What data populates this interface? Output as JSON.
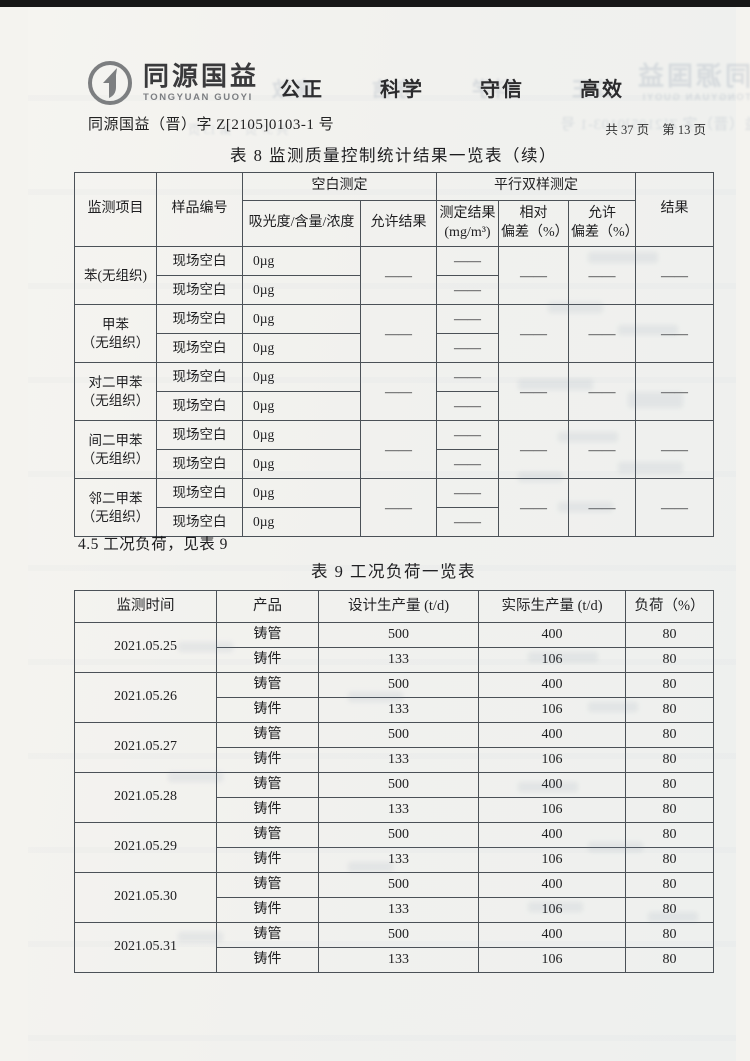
{
  "header": {
    "logo_cn": "同源国益",
    "logo_en": "TONGYUAN GUOYI",
    "slogans": [
      "公正",
      "科学",
      "守信",
      "高效"
    ],
    "doc_number": "同源国益（晋）字 Z[2105]0103-1 号",
    "page_count": "共 37 页",
    "page_current": "第 13 页"
  },
  "section_4_5": "4.5 工况负荷，见表 9",
  "table8": {
    "title": "表 8  监测质量控制统计结果一览表（续）",
    "headers": {
      "item": "监测项目",
      "sample_no": "样品编号",
      "blank_group": "空白测定",
      "parallel_group": "平行双样测定",
      "result": "结果",
      "absorbance": "吸光度/含量/浓度",
      "allowed_result": "允许结果",
      "measured": "测定结果\n(mg/m³)",
      "relative_dev": "相对\n偏差（%）",
      "allowed_dev": "允许\n偏差（%）"
    },
    "groups": [
      {
        "item": "苯(无组织)",
        "rows": [
          {
            "sample": "现场空白",
            "value": "0µg",
            "measured": "——"
          },
          {
            "sample": "现场空白",
            "value": "0µg",
            "measured": "——"
          }
        ],
        "allowed_result": "——",
        "relative_dev": "——",
        "allowed_dev": "——",
        "result": "——"
      },
      {
        "item": "甲苯\n（无组织）",
        "rows": [
          {
            "sample": "现场空白",
            "value": "0µg",
            "measured": "——"
          },
          {
            "sample": "现场空白",
            "value": "0µg",
            "measured": "——"
          }
        ],
        "allowed_result": "——",
        "relative_dev": "——",
        "allowed_dev": "——",
        "result": "——"
      },
      {
        "item": "对二甲苯\n（无组织）",
        "rows": [
          {
            "sample": "现场空白",
            "value": "0µg",
            "measured": "——"
          },
          {
            "sample": "现场空白",
            "value": "0µg",
            "measured": "——"
          }
        ],
        "allowed_result": "——",
        "relative_dev": "——",
        "allowed_dev": "——",
        "result": "——"
      },
      {
        "item": "间二甲苯\n（无组织）",
        "rows": [
          {
            "sample": "现场空白",
            "value": "0µg",
            "measured": "——"
          },
          {
            "sample": "现场空白",
            "value": "0µg",
            "measured": "——"
          }
        ],
        "allowed_result": "——",
        "relative_dev": "——",
        "allowed_dev": "——",
        "result": "——"
      },
      {
        "item": "邻二甲苯\n（无组织）",
        "rows": [
          {
            "sample": "现场空白",
            "value": "0µg",
            "measured": "——"
          },
          {
            "sample": "现场空白",
            "value": "0µg",
            "measured": "——"
          }
        ],
        "allowed_result": "——",
        "relative_dev": "——",
        "allowed_dev": "——",
        "result": "——"
      }
    ]
  },
  "table9": {
    "title": "表 9  工况负荷一览表",
    "headers": [
      "监测时间",
      "产品",
      "设计生产量 (t/d)",
      "实际生产量 (t/d)",
      "负荷（%）"
    ],
    "groups": [
      {
        "date": "2021.05.25",
        "products": [
          {
            "name": "铸管",
            "design": "500",
            "actual": "400",
            "load": "80"
          },
          {
            "name": "铸件",
            "design": "133",
            "actual": "106",
            "load": "80"
          }
        ]
      },
      {
        "date": "2021.05.26",
        "products": [
          {
            "name": "铸管",
            "design": "500",
            "actual": "400",
            "load": "80"
          },
          {
            "name": "铸件",
            "design": "133",
            "actual": "106",
            "load": "80"
          }
        ]
      },
      {
        "date": "2021.05.27",
        "products": [
          {
            "name": "铸管",
            "design": "500",
            "actual": "400",
            "load": "80"
          },
          {
            "name": "铸件",
            "design": "133",
            "actual": "106",
            "load": "80"
          }
        ]
      },
      {
        "date": "2021.05.28",
        "products": [
          {
            "name": "铸管",
            "design": "500",
            "actual": "400",
            "load": "80"
          },
          {
            "name": "铸件",
            "design": "133",
            "actual": "106",
            "load": "80"
          }
        ]
      },
      {
        "date": "2021.05.29",
        "products": [
          {
            "name": "铸管",
            "design": "500",
            "actual": "400",
            "load": "80"
          },
          {
            "name": "铸件",
            "design": "133",
            "actual": "106",
            "load": "80"
          }
        ]
      },
      {
        "date": "2021.05.30",
        "products": [
          {
            "name": "铸管",
            "design": "500",
            "actual": "400",
            "load": "80"
          },
          {
            "name": "铸件",
            "design": "133",
            "actual": "106",
            "load": "80"
          }
        ]
      },
      {
        "date": "2021.05.31",
        "products": [
          {
            "name": "铸管",
            "design": "500",
            "actual": "400",
            "load": "80"
          },
          {
            "name": "铸件",
            "design": "133",
            "actual": "106",
            "load": "80"
          }
        ]
      }
    ]
  },
  "colors": {
    "paper": "#f2f1ed",
    "scan_bar": "#171717",
    "table_line": "#4b5157",
    "text": "#1e1e20",
    "ghost_ink": "#40587c"
  }
}
